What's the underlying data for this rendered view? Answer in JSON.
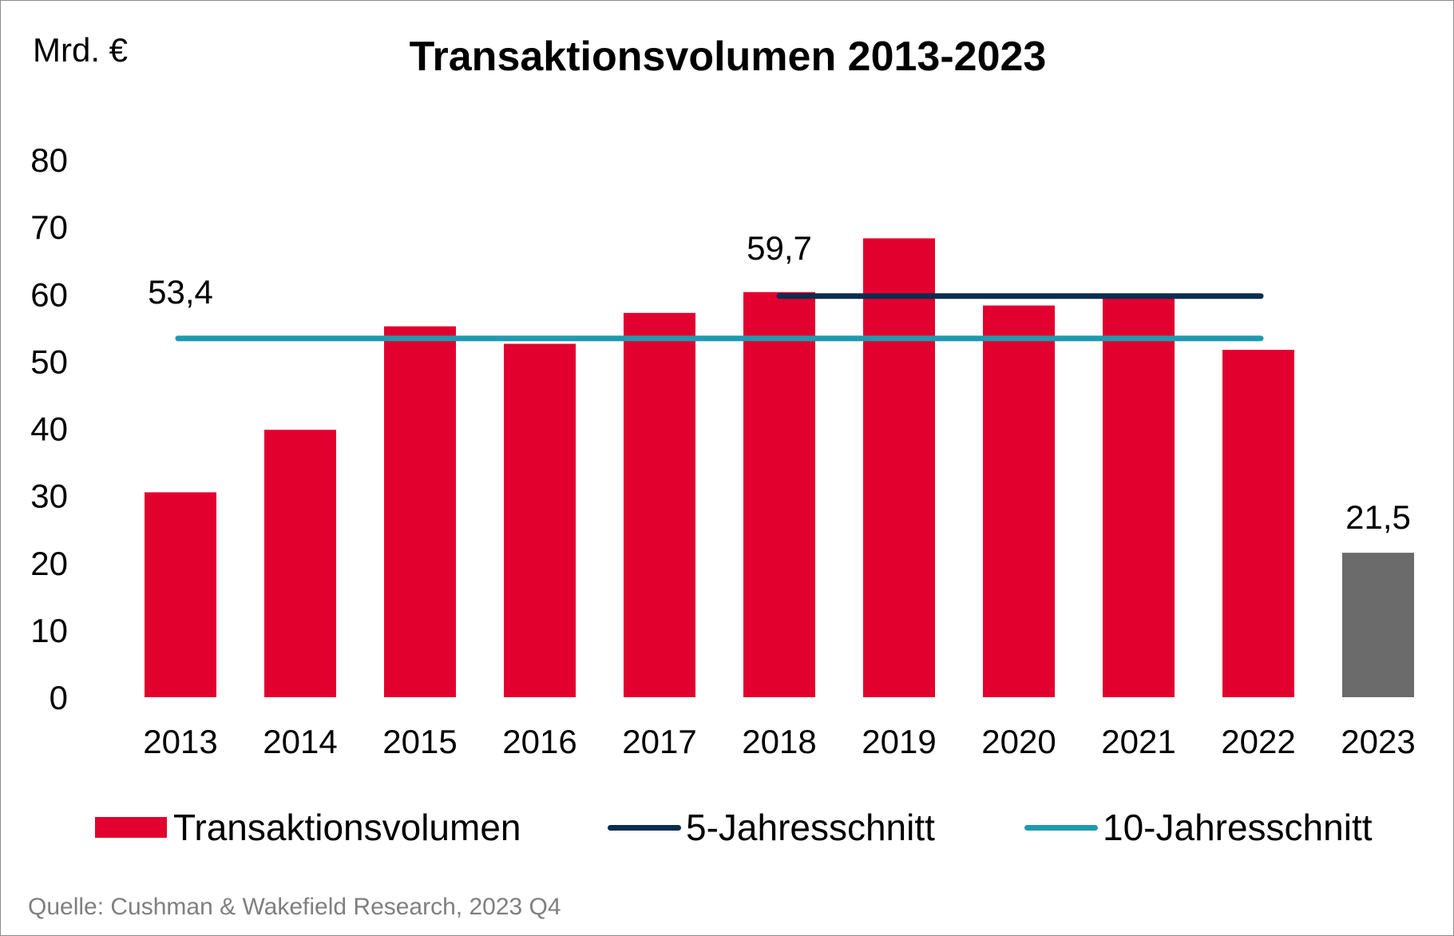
{
  "title": "Transaktionsvolumen 2013-2023",
  "unit_label": "Mrd. €",
  "source": "Quelle: Cushman & Wakefield Research, 2023 Q4",
  "legend": {
    "volume": "Transaktionsvolumen",
    "avg5": "5-Jahresschnitt",
    "avg10": "10-Jahresschnitt"
  },
  "colors": {
    "bar": "#e2002f",
    "bar_highlight": "#6b6b6b",
    "avg5": "#0b2d4f",
    "avg10": "#1e9aaf"
  },
  "chart_data": {
    "type": "bar",
    "categories": [
      "2013",
      "2014",
      "2015",
      "2016",
      "2017",
      "2018",
      "2019",
      "2020",
      "2021",
      "2022",
      "2023"
    ],
    "values": [
      30.5,
      39.8,
      55.2,
      52.6,
      57.2,
      60.3,
      68.3,
      58.3,
      59.6,
      51.7,
      21.5
    ],
    "highlight_category": "2023",
    "ylim": [
      0,
      80
    ],
    "yticks": [
      0,
      10,
      20,
      30,
      40,
      50,
      60,
      70,
      80
    ],
    "grid": false,
    "legend_position": "bottom",
    "averages": [
      {
        "name": "5-Jahresschnitt",
        "value": 59.7,
        "label": "59,7",
        "from": "2018",
        "to": "2022"
      },
      {
        "name": "10-Jahresschnitt",
        "value": 53.4,
        "label": "53,4",
        "from": "2013",
        "to": "2022"
      }
    ],
    "data_labels": [
      {
        "category": "2023",
        "label": "21,5"
      }
    ]
  }
}
